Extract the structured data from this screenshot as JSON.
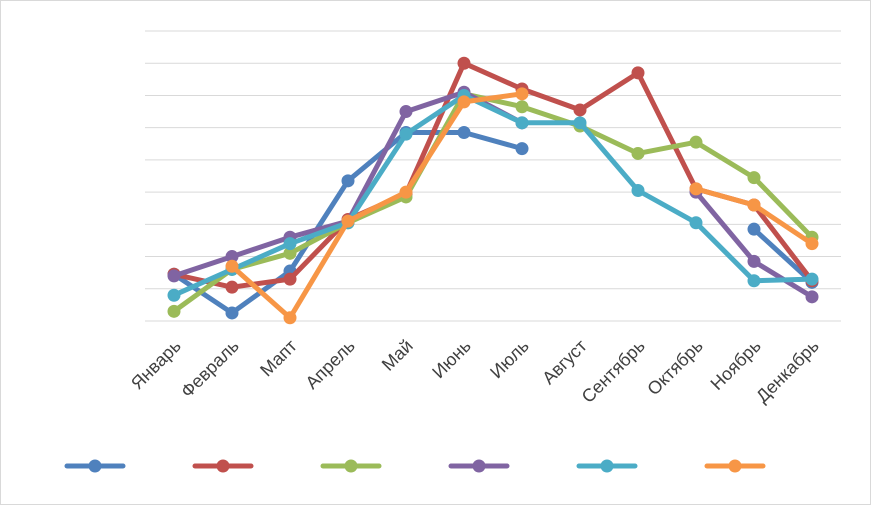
{
  "chart_data": {
    "type": "line",
    "title": "",
    "xlabel": "",
    "ylabel": "",
    "categories": [
      "Январь",
      "Февраль",
      "Мапт",
      "Апрель",
      "Май",
      "Июнь",
      "Июль",
      "Август",
      "Сентябрь",
      "Октябрь",
      "Ноябрь",
      "Денкабрь"
    ],
    "ylim": [
      0,
      9
    ],
    "y_ticks_shown": false,
    "grid": "horizontal",
    "legend": {
      "position": "bottom",
      "entries_have_text": false
    },
    "series": [
      {
        "color": "#4f81bd",
        "values": [
          1.45,
          0.25,
          1.55,
          4.35,
          5.85,
          5.85,
          5.35,
          null,
          null,
          null,
          2.85,
          1.2
        ]
      },
      {
        "color": "#c0504d",
        "values": [
          1.45,
          1.05,
          1.3,
          3.15,
          3.95,
          8.0,
          7.2,
          6.55,
          7.7,
          4.1,
          3.6,
          1.25
        ]
      },
      {
        "color": "#9bbb59",
        "values": [
          0.3,
          1.6,
          2.1,
          3.05,
          3.85,
          7.05,
          6.65,
          6.05,
          5.2,
          5.55,
          4.45,
          2.6
        ]
      },
      {
        "color": "#8064a2",
        "values": [
          1.4,
          2.0,
          2.6,
          3.1,
          6.5,
          7.1,
          6.15,
          null,
          null,
          4.0,
          1.85,
          0.75
        ]
      },
      {
        "color": "#4bacc6",
        "values": [
          0.8,
          1.6,
          2.4,
          3.05,
          5.8,
          7.0,
          6.15,
          6.15,
          4.05,
          3.05,
          1.25,
          1.3
        ]
      },
      {
        "color": "#f79646",
        "values": [
          null,
          1.7,
          0.1,
          3.1,
          4.0,
          6.8,
          7.05,
          null,
          null,
          4.1,
          3.6,
          2.4
        ]
      }
    ]
  }
}
